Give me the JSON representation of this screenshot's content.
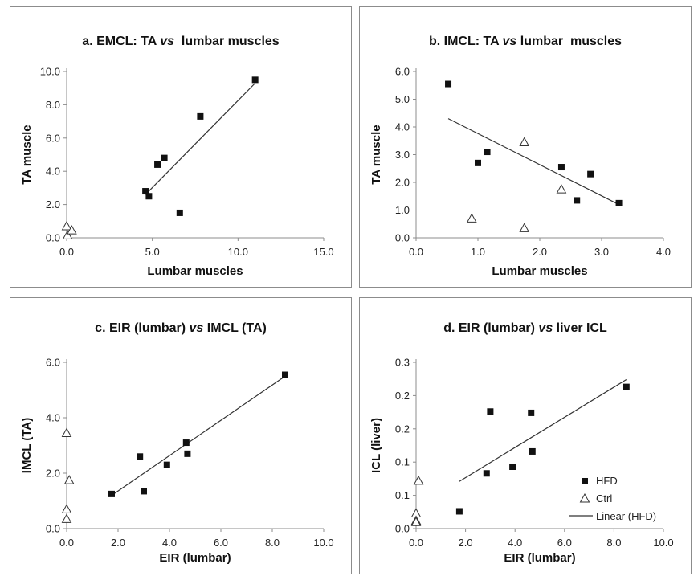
{
  "chart_data": [
    {
      "id": "a",
      "type": "scatter",
      "title": "a. EMCL: TA vs  lumbar muscles",
      "title_parts": [
        "a. EMCL: TA ",
        "vs",
        "  lumbar muscles"
      ],
      "xlabel": "Lumbar muscles",
      "ylabel": "TA muscle",
      "xlim": [
        0,
        15
      ],
      "ylim": [
        0,
        10
      ],
      "xticks": [
        0,
        5,
        10,
        15
      ],
      "yticks": [
        0,
        2,
        4,
        6,
        8,
        10
      ],
      "xtick_labels": [
        "0.0",
        "5.0",
        "10.0",
        "15.0"
      ],
      "ytick_labels": [
        "0.0",
        "2.0",
        "4.0",
        "6.0",
        "8.0",
        "10.0"
      ],
      "series": [
        {
          "name": "HFD",
          "marker": "square",
          "points": [
            [
              4.6,
              2.8
            ],
            [
              4.8,
              2.5
            ],
            [
              5.3,
              4.4
            ],
            [
              5.7,
              4.8
            ],
            [
              6.6,
              1.5
            ],
            [
              7.8,
              7.3
            ],
            [
              11.0,
              9.5
            ]
          ]
        },
        {
          "name": "Ctrl",
          "marker": "triangle",
          "points": [
            [
              0.0,
              0.7
            ],
            [
              0.05,
              0.15
            ],
            [
              0.3,
              0.45
            ]
          ]
        }
      ],
      "trendline": {
        "name": "Linear (HFD)",
        "x": [
          4.6,
          11.0
        ],
        "y": [
          2.6,
          9.3
        ]
      }
    },
    {
      "id": "b",
      "type": "scatter",
      "title": "b. IMCL: TA vs lumbar  muscles",
      "title_parts": [
        "b. IMCL: TA ",
        "vs",
        " lumbar  muscles"
      ],
      "xlabel": "Lumbar muscles",
      "ylabel": "TA muscle",
      "xlim": [
        0,
        4
      ],
      "ylim": [
        0,
        6
      ],
      "xticks": [
        0,
        1,
        2,
        3,
        4
      ],
      "yticks": [
        0,
        1,
        2,
        3,
        4,
        5,
        6
      ],
      "xtick_labels": [
        "0.0",
        "1.0",
        "2.0",
        "3.0",
        "4.0"
      ],
      "ytick_labels": [
        "0.0",
        "1.0",
        "2.0",
        "3.0",
        "4.0",
        "5.0",
        "6.0"
      ],
      "series": [
        {
          "name": "HFD",
          "marker": "square",
          "points": [
            [
              0.52,
              5.55
            ],
            [
              1.0,
              2.7
            ],
            [
              1.15,
              3.1
            ],
            [
              2.35,
              2.55
            ],
            [
              2.6,
              1.35
            ],
            [
              2.82,
              2.3
            ],
            [
              3.28,
              1.25
            ]
          ]
        },
        {
          "name": "Ctrl",
          "marker": "triangle",
          "points": [
            [
              0.9,
              0.7
            ],
            [
              1.75,
              3.45
            ],
            [
              1.75,
              0.35
            ],
            [
              2.35,
              1.75
            ]
          ]
        }
      ],
      "trendline": {
        "name": "Linear (HFD)",
        "x": [
          0.52,
          3.28
        ],
        "y": [
          4.3,
          1.2
        ]
      }
    },
    {
      "id": "c",
      "type": "scatter",
      "title": "c. EIR (lumbar) vs IMCL (TA)",
      "title_parts": [
        "c. EIR (lumbar) ",
        "vs",
        " IMCL (TA)"
      ],
      "xlabel": "EIR (lumbar)",
      "ylabel": "IMCL (TA)",
      "xlim": [
        0,
        10
      ],
      "ylim": [
        0,
        6
      ],
      "xticks": [
        0,
        2,
        4,
        6,
        8,
        10
      ],
      "yticks": [
        0,
        2,
        4,
        6
      ],
      "xtick_labels": [
        "0.0",
        "2.0",
        "4.0",
        "6.0",
        "8.0",
        "10.0"
      ],
      "ytick_labels": [
        "0.0",
        "2.0",
        "4.0",
        "6.0"
      ],
      "series": [
        {
          "name": "HFD",
          "marker": "square",
          "points": [
            [
              1.75,
              1.25
            ],
            [
              2.85,
              2.6
            ],
            [
              3.0,
              1.35
            ],
            [
              3.9,
              2.3
            ],
            [
              4.65,
              3.1
            ],
            [
              4.7,
              2.7
            ],
            [
              8.5,
              5.55
            ]
          ]
        },
        {
          "name": "Ctrl",
          "marker": "triangle",
          "points": [
            [
              0.0,
              3.45
            ],
            [
              0.1,
              1.75
            ],
            [
              0.0,
              0.7
            ],
            [
              0.0,
              0.35
            ]
          ]
        }
      ],
      "trendline": {
        "name": "Linear (HFD)",
        "x": [
          1.75,
          8.5
        ],
        "y": [
          1.2,
          5.5
        ]
      }
    },
    {
      "id": "d",
      "type": "scatter",
      "title": "d. EIR (lumbar) vs liver ICL",
      "title_parts": [
        "d. EIR (lumbar) ",
        "vs",
        " liver ICL"
      ],
      "xlabel": "EIR (lumbar)",
      "ylabel": "ICL (liver)",
      "xlim": [
        0,
        10
      ],
      "ylim": [
        0,
        0.25
      ],
      "xticks": [
        0,
        2,
        4,
        6,
        8,
        10
      ],
      "yticks": [
        0,
        0.05,
        0.1,
        0.15,
        0.2,
        0.25
      ],
      "xtick_labels": [
        "0.0",
        "2.0",
        "4.0",
        "6.0",
        "8.0",
        "10.0"
      ],
      "ytick_labels": [
        "0.0",
        "0.1",
        "0.1",
        "0.2",
        "0.2",
        "0.3"
      ],
      "series": [
        {
          "name": "HFD",
          "marker": "square",
          "points": [
            [
              1.75,
              0.026
            ],
            [
              2.85,
              0.083
            ],
            [
              3.0,
              0.176
            ],
            [
              3.9,
              0.093
            ],
            [
              4.65,
              0.174
            ],
            [
              4.7,
              0.116
            ],
            [
              8.5,
              0.213
            ]
          ]
        },
        {
          "name": "Ctrl",
          "marker": "triangle",
          "points": [
            [
              0.1,
              0.072
            ],
            [
              0.0,
              0.023
            ],
            [
              0.0,
              0.012
            ],
            [
              0.0,
              0.01
            ]
          ]
        }
      ],
      "trendline": {
        "name": "Linear (HFD)",
        "x": [
          1.75,
          8.5
        ],
        "y": [
          0.071,
          0.224
        ]
      },
      "legend": {
        "position": "bottom-right",
        "entries": [
          "HFD",
          "Ctrl",
          "Linear (HFD)"
        ]
      }
    }
  ]
}
